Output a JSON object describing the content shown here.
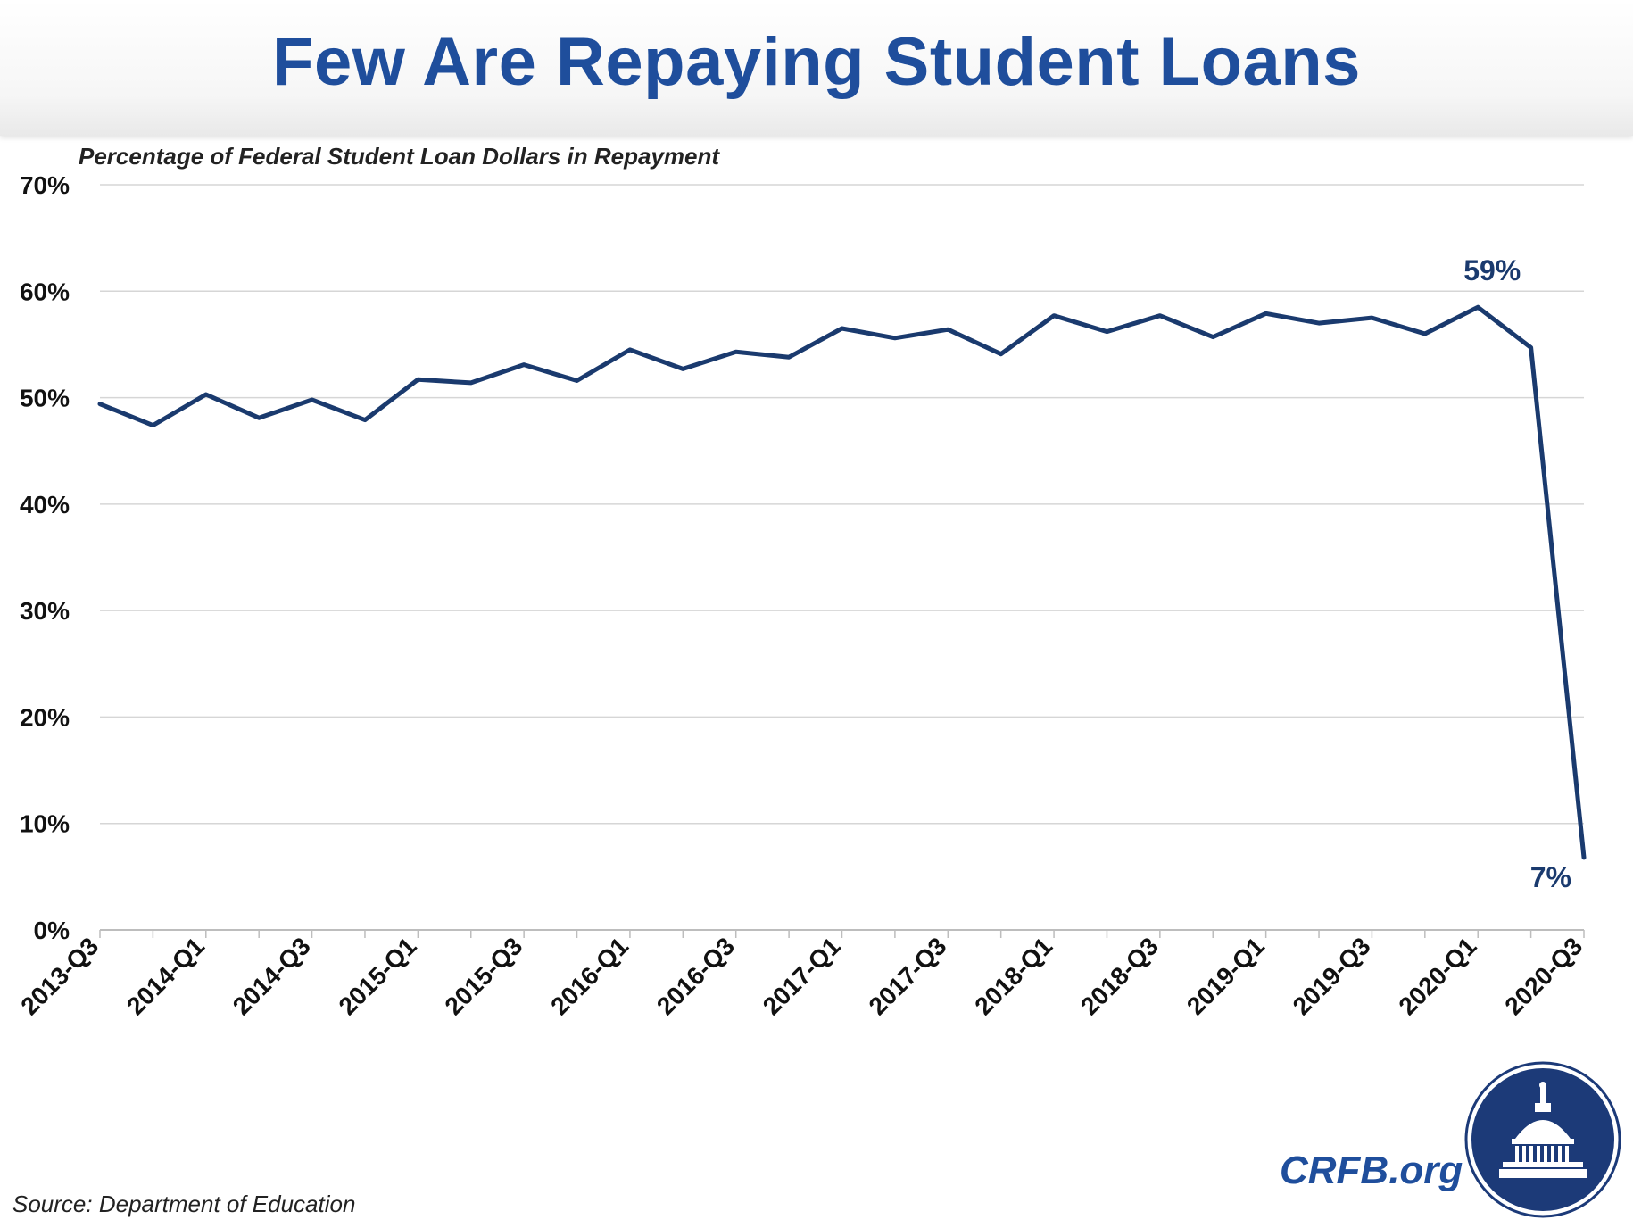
{
  "header": {
    "title": "Few Are Repaying Student Loans",
    "subtitle": "Percentage of Federal Student Loan Dollars in Repayment"
  },
  "footer": {
    "source": "Source: Department of Education",
    "brand": "CRFB.org"
  },
  "colors": {
    "title": "#1f4e9c",
    "line": "#1a3a6e",
    "grid": "#d6d6d6",
    "seal": "#1c3a78"
  },
  "chart_data": {
    "type": "line",
    "title": "Few Are Repaying Student Loans",
    "ylabel": "Percentage of Federal Student Loan Dollars in Repayment",
    "xlabel": "",
    "ylim": [
      0,
      70
    ],
    "y_ticks": [
      "0%",
      "10%",
      "20%",
      "30%",
      "40%",
      "50%",
      "60%",
      "70%"
    ],
    "grid": true,
    "categories": [
      "2013-Q3",
      "2013-Q4",
      "2014-Q1",
      "2014-Q2",
      "2014-Q3",
      "2014-Q4",
      "2015-Q1",
      "2015-Q2",
      "2015-Q3",
      "2015-Q4",
      "2016-Q1",
      "2016-Q2",
      "2016-Q3",
      "2016-Q4",
      "2017-Q1",
      "2017-Q2",
      "2017-Q3",
      "2017-Q4",
      "2018-Q1",
      "2018-Q2",
      "2018-Q3",
      "2018-Q4",
      "2019-Q1",
      "2019-Q2",
      "2019-Q3",
      "2019-Q4",
      "2020-Q1",
      "2020-Q2",
      "2020-Q3"
    ],
    "x_tick_labels": [
      "2013-Q3",
      "2014-Q1",
      "2014-Q3",
      "2015-Q1",
      "2015-Q3",
      "2016-Q1",
      "2016-Q3",
      "2017-Q1",
      "2017-Q3",
      "2018-Q1",
      "2018-Q3",
      "2019-Q1",
      "2019-Q3",
      "2020-Q1",
      "2020-Q3"
    ],
    "values": [
      49.4,
      47.4,
      50.3,
      48.1,
      49.8,
      47.9,
      51.7,
      51.4,
      53.1,
      51.6,
      54.5,
      52.7,
      54.3,
      53.8,
      56.5,
      55.6,
      56.4,
      54.1,
      57.7,
      56.2,
      57.7,
      55.7,
      57.9,
      57.0,
      57.5,
      56.0,
      58.5,
      54.7,
      6.8
    ],
    "annotations": [
      {
        "label": "59%",
        "category": "2020-Q1"
      },
      {
        "label": "7%",
        "category": "2020-Q3"
      }
    ]
  }
}
